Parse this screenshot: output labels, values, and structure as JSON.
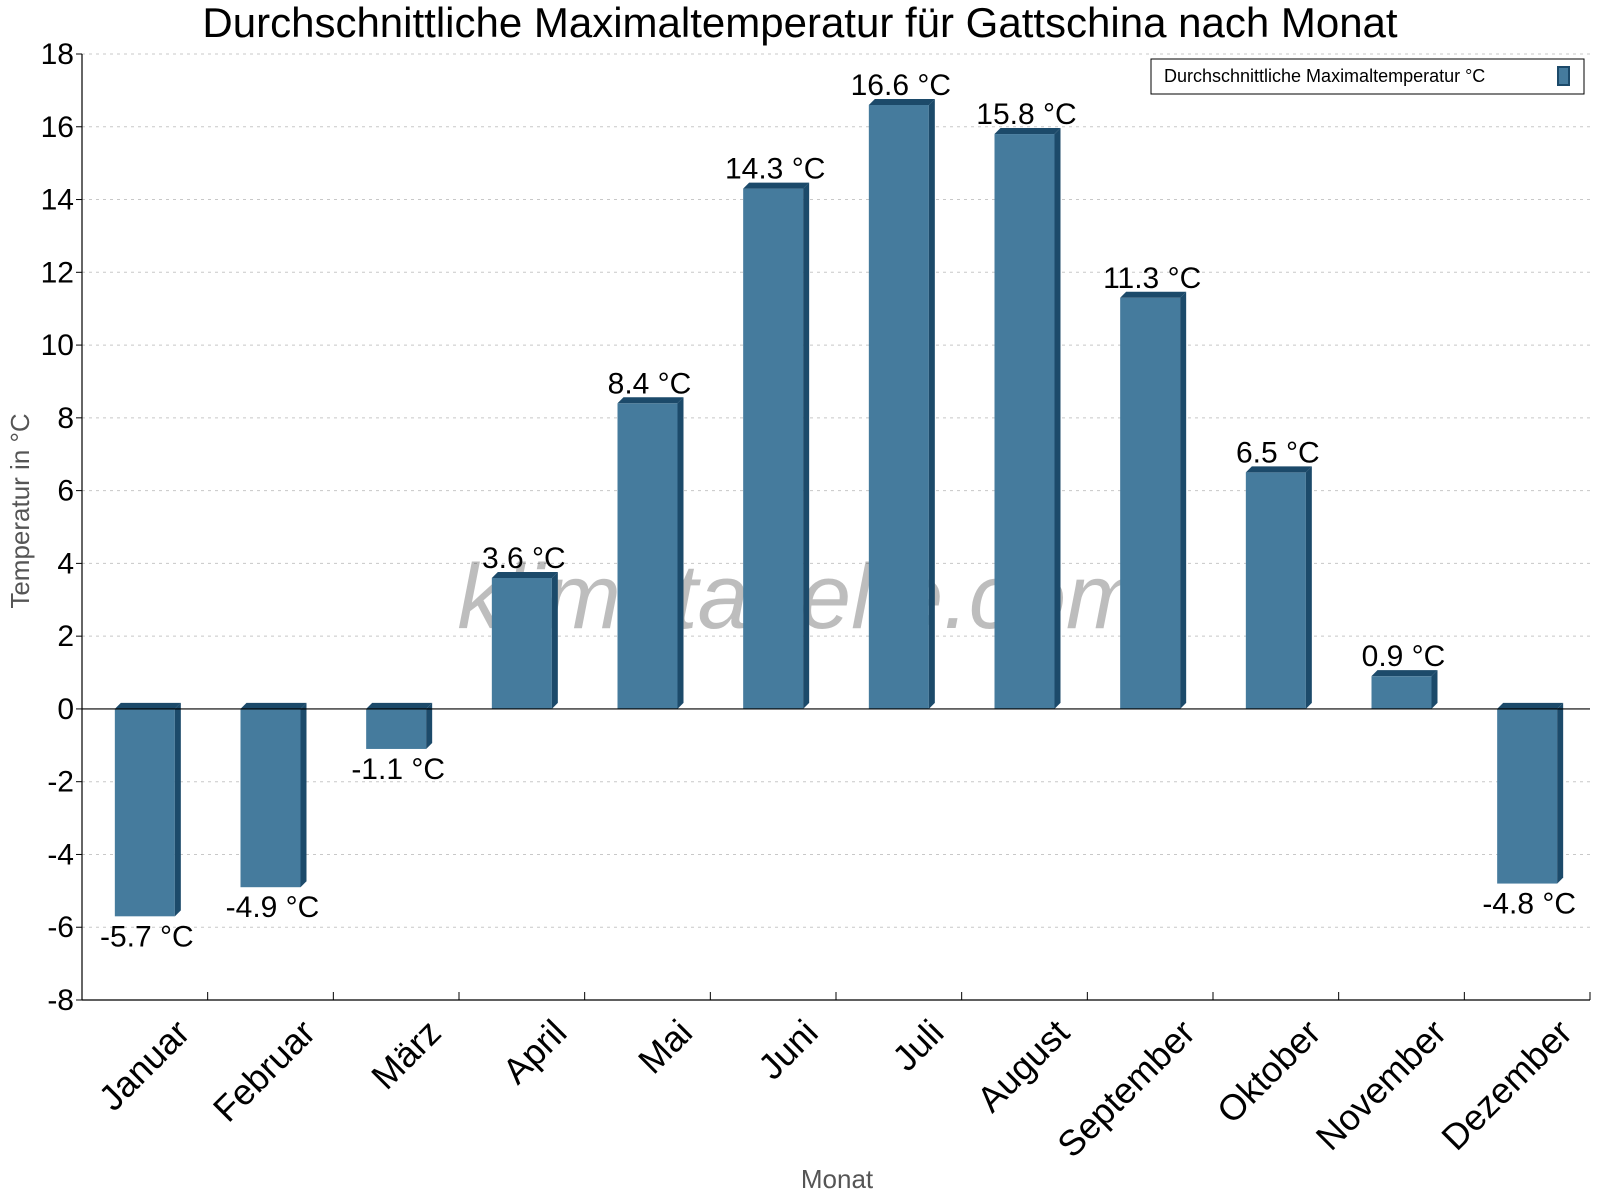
{
  "watermark": "klimatabelle.com",
  "chart_data": {
    "type": "bar",
    "title": "Durchschnittliche Maximaltemperatur für Gattschina nach Monat",
    "xlabel": "Monat",
    "ylabel": "Temperatur in °C",
    "ylim": [
      -8,
      18
    ],
    "yticks": [
      "18",
      "16",
      "14",
      "12",
      "10",
      "8",
      "6",
      "4",
      "2",
      "0",
      "-2",
      "-4",
      "-6",
      "-8"
    ],
    "grid": true,
    "legend_position": "top-right",
    "categories": [
      "Januar",
      "Februar",
      "März",
      "April",
      "Mai",
      "Juni",
      "Juli",
      "August",
      "September",
      "Oktober",
      "November",
      "Dezember"
    ],
    "series": [
      {
        "name": "Durchschnittliche Maximaltemperatur °C",
        "color": "#457b9d",
        "values": [
          -5.7,
          -4.9,
          -1.1,
          3.6,
          8.4,
          14.3,
          16.6,
          15.8,
          11.3,
          6.5,
          0.9,
          -4.8
        ],
        "labels": [
          "-5.7 °C",
          "-4.9 °C",
          "-1.1 °C",
          "3.6 °C",
          "8.4 °C",
          "14.3 °C",
          "16.6 °C",
          "15.8 °C",
          "11.3 °C",
          "6.5 °C",
          "0.9 °C",
          "-4.8 °C"
        ]
      }
    ]
  }
}
